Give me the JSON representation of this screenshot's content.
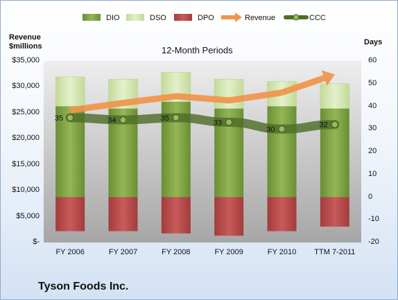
{
  "chart_data": {
    "type": "bar",
    "title": "12-Month Periods",
    "categories": [
      "FY 2006",
      "FY 2007",
      "FY 2008",
      "FY 2009",
      "FY 2010",
      "TTM 7-2011"
    ],
    "left_axis": {
      "label_line1": "Revenue",
      "label_line2": "$millions",
      "ylim": [
        0,
        35000
      ],
      "ticks": [
        {
          "value": 0,
          "label": "$-"
        },
        {
          "value": 5000,
          "label": "$5,000"
        },
        {
          "value": 10000,
          "label": "$10,000"
        },
        {
          "value": 15000,
          "label": "$15,000"
        },
        {
          "value": 20000,
          "label": "$20,000"
        },
        {
          "value": 25000,
          "label": "$25,000"
        },
        {
          "value": 30000,
          "label": "$30,000"
        },
        {
          "value": 35000,
          "label": "$35,000"
        }
      ]
    },
    "right_axis": {
      "label": "Days",
      "ylim": [
        -20,
        60
      ],
      "ticks": [
        -20,
        -10,
        0,
        10,
        20,
        30,
        40,
        50,
        60
      ]
    },
    "series": [
      {
        "name": "DIO",
        "axis": "right",
        "kind": "stacked-bar",
        "color": "#7ea040",
        "values": [
          40,
          39,
          42,
          39,
          40,
          39
        ]
      },
      {
        "name": "DSO",
        "axis": "right",
        "kind": "stacked-bar",
        "color": "#d4e6b0",
        "values": [
          13,
          13,
          13,
          13,
          11,
          11
        ]
      },
      {
        "name": "DPO",
        "axis": "right",
        "kind": "negative-bar",
        "color": "#b84848",
        "values": [
          -15,
          -15,
          -16,
          -17,
          -15,
          -13
        ]
      },
      {
        "name": "Revenue",
        "axis": "left",
        "kind": "arrow-line",
        "color": "#f0944a",
        "values": [
          25500,
          26900,
          28200,
          27400,
          28900,
          32400
        ]
      },
      {
        "name": "CCC",
        "axis": "right",
        "kind": "line",
        "color": "#5a7a2e",
        "values": [
          35,
          34,
          35,
          33,
          30,
          32
        ]
      }
    ],
    "data_labels": [
      "35",
      "34",
      "35",
      "33",
      "30",
      "32"
    ],
    "legend": {
      "position": "top",
      "entries": [
        "DIO",
        "DSO",
        "DPO",
        "Revenue",
        "CCC"
      ]
    },
    "grid": false
  },
  "footer": {
    "company": "Tyson Foods Inc."
  }
}
